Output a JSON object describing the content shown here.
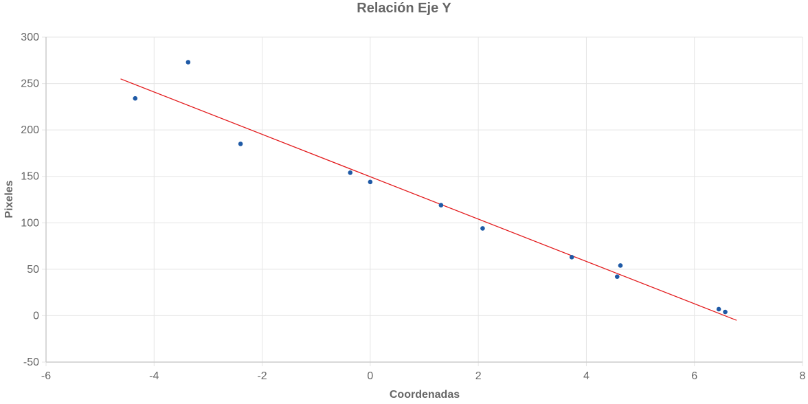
{
  "chart_data": {
    "type": "scatter",
    "title": "Relación Eje Y",
    "xlabel": "Coordenadas",
    "ylabel": "Pixeles",
    "xlim": [
      -6,
      8
    ],
    "ylim": [
      -50,
      300
    ],
    "xticks": [
      -6,
      -4,
      -2,
      0,
      2,
      4,
      6,
      8
    ],
    "yticks": [
      -50,
      0,
      50,
      100,
      150,
      200,
      250,
      300
    ],
    "grid": true,
    "legend": "none",
    "colors": {
      "points": "#1f5aa6",
      "trend_line": "#e31a1c",
      "grid": "#e5e5e5",
      "text": "#666666"
    },
    "series": [
      {
        "kind": "points",
        "points": [
          {
            "x": -4.35,
            "y": 234
          },
          {
            "x": -3.37,
            "y": 273
          },
          {
            "x": -2.4,
            "y": 185
          },
          {
            "x": -0.37,
            "y": 154
          },
          {
            "x": 0.0,
            "y": 144
          },
          {
            "x": 1.31,
            "y": 119
          },
          {
            "x": 2.08,
            "y": 94
          },
          {
            "x": 3.73,
            "y": 63
          },
          {
            "x": 4.57,
            "y": 42
          },
          {
            "x": 4.63,
            "y": 54
          },
          {
            "x": 6.45,
            "y": 7
          },
          {
            "x": 6.57,
            "y": 4
          }
        ]
      },
      {
        "kind": "line",
        "points": [
          {
            "x": -4.62,
            "y": 255
          },
          {
            "x": 6.78,
            "y": -5
          }
        ]
      }
    ]
  }
}
